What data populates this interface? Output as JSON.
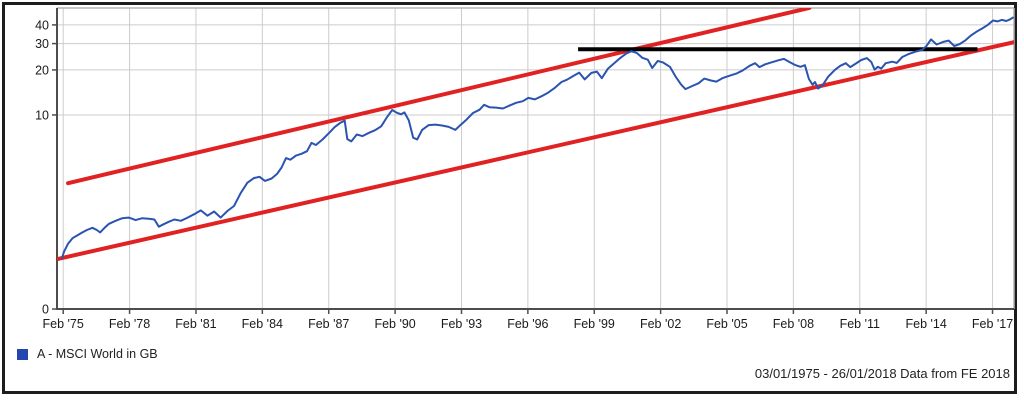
{
  "legend": {
    "swatch_color": "#2347ae",
    "label": "A - MSCI World in GB"
  },
  "footer": {
    "text": "03/01/1975 - 26/01/2018 Data from FE 2018"
  },
  "chart_data": {
    "type": "line",
    "title": "",
    "xlabel": "",
    "ylabel": "",
    "x_axis": {
      "min": 1974.8,
      "max": 2018.05,
      "ticks": [
        {
          "label": "Feb '75",
          "year": 1975.08
        },
        {
          "label": "Feb '78",
          "year": 1978.08
        },
        {
          "label": "Feb '81",
          "year": 1981.08
        },
        {
          "label": "Feb '84",
          "year": 1984.08
        },
        {
          "label": "Feb '87",
          "year": 1987.08
        },
        {
          "label": "Feb '90",
          "year": 1990.08
        },
        {
          "label": "Feb '93",
          "year": 1993.08
        },
        {
          "label": "Feb '96",
          "year": 1996.08
        },
        {
          "label": "Feb '99",
          "year": 1999.08
        },
        {
          "label": "Feb '02",
          "year": 2002.08
        },
        {
          "label": "Feb '05",
          "year": 2005.08
        },
        {
          "label": "Feb '08",
          "year": 2008.08
        },
        {
          "label": "Feb '11",
          "year": 2011.08
        },
        {
          "label": "Feb '14",
          "year": 2014.08
        },
        {
          "label": "Feb '17",
          "year": 2017.08
        }
      ]
    },
    "y_axis": {
      "scale": "log",
      "min": 0.504,
      "max": 51.9,
      "ticks": [
        {
          "label": "40",
          "value": 40
        },
        {
          "label": "30",
          "value": 30
        },
        {
          "label": "20",
          "value": 20
        },
        {
          "label": "10",
          "value": 10
        },
        {
          "label": "0",
          "value": 0
        }
      ]
    },
    "grid": {
      "color": "#cccccc",
      "horizontal_at": [
        40,
        30,
        20,
        10
      ],
      "vertical_every_years": 3
    },
    "frame": {
      "axis_color": "#4d4d4d",
      "border_color": "#b3b3b3"
    },
    "series": [
      {
        "name": "A - MSCI World in GB",
        "color": "#2b53b0",
        "width": 2,
        "points": [
          [
            1975.02,
            1.1
          ],
          [
            1975.12,
            1.22
          ],
          [
            1975.3,
            1.38
          ],
          [
            1975.5,
            1.5
          ],
          [
            1975.7,
            1.56
          ],
          [
            1975.95,
            1.64
          ],
          [
            1976.15,
            1.7
          ],
          [
            1976.4,
            1.76
          ],
          [
            1976.6,
            1.7
          ],
          [
            1976.75,
            1.64
          ],
          [
            1976.95,
            1.76
          ],
          [
            1977.15,
            1.87
          ],
          [
            1977.45,
            1.96
          ],
          [
            1977.75,
            2.04
          ],
          [
            1978.05,
            2.06
          ],
          [
            1978.35,
            1.98
          ],
          [
            1978.65,
            2.04
          ],
          [
            1978.95,
            2.02
          ],
          [
            1979.2,
            2.0
          ],
          [
            1979.4,
            1.79
          ],
          [
            1979.62,
            1.86
          ],
          [
            1979.85,
            1.93
          ],
          [
            1980.1,
            2.0
          ],
          [
            1980.4,
            1.96
          ],
          [
            1980.7,
            2.06
          ],
          [
            1981.0,
            2.17
          ],
          [
            1981.3,
            2.3
          ],
          [
            1981.6,
            2.12
          ],
          [
            1981.9,
            2.26
          ],
          [
            1982.2,
            2.06
          ],
          [
            1982.5,
            2.28
          ],
          [
            1982.8,
            2.46
          ],
          [
            1983.1,
            3.0
          ],
          [
            1983.4,
            3.52
          ],
          [
            1983.7,
            3.78
          ],
          [
            1983.95,
            3.86
          ],
          [
            1984.2,
            3.62
          ],
          [
            1984.5,
            3.76
          ],
          [
            1984.75,
            4.05
          ],
          [
            1984.95,
            4.45
          ],
          [
            1985.15,
            5.15
          ],
          [
            1985.35,
            5.02
          ],
          [
            1985.6,
            5.35
          ],
          [
            1985.85,
            5.5
          ],
          [
            1986.1,
            5.72
          ],
          [
            1986.3,
            6.5
          ],
          [
            1986.5,
            6.3
          ],
          [
            1986.8,
            6.85
          ],
          [
            1987.1,
            7.6
          ],
          [
            1987.35,
            8.3
          ],
          [
            1987.6,
            8.85
          ],
          [
            1987.8,
            9.15
          ],
          [
            1987.92,
            6.9
          ],
          [
            1988.1,
            6.65
          ],
          [
            1988.35,
            7.4
          ],
          [
            1988.6,
            7.22
          ],
          [
            1988.9,
            7.6
          ],
          [
            1989.2,
            7.95
          ],
          [
            1989.45,
            8.4
          ],
          [
            1989.7,
            9.6
          ],
          [
            1989.95,
            10.8
          ],
          [
            1990.15,
            10.35
          ],
          [
            1990.35,
            10.1
          ],
          [
            1990.5,
            10.4
          ],
          [
            1990.7,
            9.2
          ],
          [
            1990.9,
            7.05
          ],
          [
            1991.08,
            6.85
          ],
          [
            1991.3,
            7.95
          ],
          [
            1991.6,
            8.55
          ],
          [
            1991.9,
            8.62
          ],
          [
            1992.2,
            8.5
          ],
          [
            1992.5,
            8.32
          ],
          [
            1992.8,
            7.95
          ],
          [
            1993.05,
            8.6
          ],
          [
            1993.3,
            9.3
          ],
          [
            1993.6,
            10.3
          ],
          [
            1993.9,
            10.85
          ],
          [
            1994.1,
            11.7
          ],
          [
            1994.35,
            11.25
          ],
          [
            1994.65,
            11.2
          ],
          [
            1994.95,
            11.05
          ],
          [
            1995.25,
            11.55
          ],
          [
            1995.55,
            12.05
          ],
          [
            1995.85,
            12.35
          ],
          [
            1996.1,
            13.0
          ],
          [
            1996.4,
            12.7
          ],
          [
            1996.7,
            13.35
          ],
          [
            1997.0,
            14.1
          ],
          [
            1997.3,
            15.2
          ],
          [
            1997.6,
            16.6
          ],
          [
            1997.85,
            17.2
          ],
          [
            1998.1,
            18.1
          ],
          [
            1998.4,
            19.2
          ],
          [
            1998.65,
            17.3
          ],
          [
            1998.95,
            19.1
          ],
          [
            1999.2,
            19.5
          ],
          [
            1999.42,
            17.6
          ],
          [
            1999.7,
            20.4
          ],
          [
            2000.0,
            22.3
          ],
          [
            2000.25,
            24.0
          ],
          [
            2000.5,
            25.6
          ],
          [
            2000.75,
            26.7
          ],
          [
            2001.0,
            26.0
          ],
          [
            2001.25,
            24.1
          ],
          [
            2001.5,
            23.4
          ],
          [
            2001.7,
            20.6
          ],
          [
            2001.95,
            23.0
          ],
          [
            2002.2,
            22.4
          ],
          [
            2002.5,
            21.0
          ],
          [
            2002.75,
            18.1
          ],
          [
            2003.0,
            16.0
          ],
          [
            2003.2,
            14.9
          ],
          [
            2003.5,
            15.6
          ],
          [
            2003.8,
            16.3
          ],
          [
            2004.05,
            17.5
          ],
          [
            2004.35,
            17.0
          ],
          [
            2004.6,
            16.7
          ],
          [
            2004.9,
            17.7
          ],
          [
            2005.2,
            18.3
          ],
          [
            2005.5,
            18.9
          ],
          [
            2005.8,
            19.9
          ],
          [
            2006.1,
            21.3
          ],
          [
            2006.35,
            22.2
          ],
          [
            2006.55,
            20.9
          ],
          [
            2006.8,
            21.8
          ],
          [
            2007.1,
            22.5
          ],
          [
            2007.4,
            23.2
          ],
          [
            2007.65,
            23.7
          ],
          [
            2007.9,
            22.6
          ],
          [
            2008.15,
            21.6
          ],
          [
            2008.4,
            21.0
          ],
          [
            2008.6,
            21.5
          ],
          [
            2008.78,
            17.4
          ],
          [
            2008.95,
            15.9
          ],
          [
            2009.05,
            16.6
          ],
          [
            2009.2,
            15.0
          ],
          [
            2009.4,
            15.8
          ],
          [
            2009.65,
            18.0
          ],
          [
            2009.95,
            20.0
          ],
          [
            2010.2,
            21.3
          ],
          [
            2010.45,
            22.2
          ],
          [
            2010.65,
            20.9
          ],
          [
            2010.95,
            22.3
          ],
          [
            2011.15,
            23.3
          ],
          [
            2011.4,
            24.0
          ],
          [
            2011.6,
            22.6
          ],
          [
            2011.75,
            20.1
          ],
          [
            2011.9,
            21.0
          ],
          [
            2012.05,
            20.4
          ],
          [
            2012.25,
            22.2
          ],
          [
            2012.55,
            22.7
          ],
          [
            2012.75,
            22.3
          ],
          [
            2013.0,
            24.4
          ],
          [
            2013.3,
            25.6
          ],
          [
            2013.6,
            26.5
          ],
          [
            2013.9,
            27.2
          ],
          [
            2014.1,
            29.0
          ],
          [
            2014.3,
            32.0
          ],
          [
            2014.55,
            29.6
          ],
          [
            2014.85,
            30.8
          ],
          [
            2015.1,
            31.4
          ],
          [
            2015.35,
            28.9
          ],
          [
            2015.6,
            29.8
          ],
          [
            2015.85,
            31.5
          ],
          [
            2016.1,
            34.0
          ],
          [
            2016.35,
            36.0
          ],
          [
            2016.6,
            37.8
          ],
          [
            2016.85,
            39.8
          ],
          [
            2017.1,
            42.8
          ],
          [
            2017.3,
            42.2
          ],
          [
            2017.5,
            43.2
          ],
          [
            2017.7,
            42.5
          ],
          [
            2017.85,
            43.4
          ],
          [
            2018.0,
            44.8
          ]
        ]
      }
    ],
    "annotations": {
      "channel_lower": {
        "type": "trendline",
        "color": "#e02222",
        "width": 4,
        "points": [
          [
            1974.85,
            1.09
          ],
          [
            2018.1,
            30.8
          ]
        ]
      },
      "channel_upper": {
        "type": "trendline",
        "color": "#e02222",
        "width": 4,
        "points": [
          [
            1975.3,
            3.5
          ],
          [
            2008.8,
            52.0
          ]
        ]
      },
      "resistance": {
        "type": "horizontal-line",
        "color": "#000000",
        "width": 4,
        "value": 27.5,
        "from_year": 1998.35,
        "to_year": 2016.4
      }
    }
  }
}
